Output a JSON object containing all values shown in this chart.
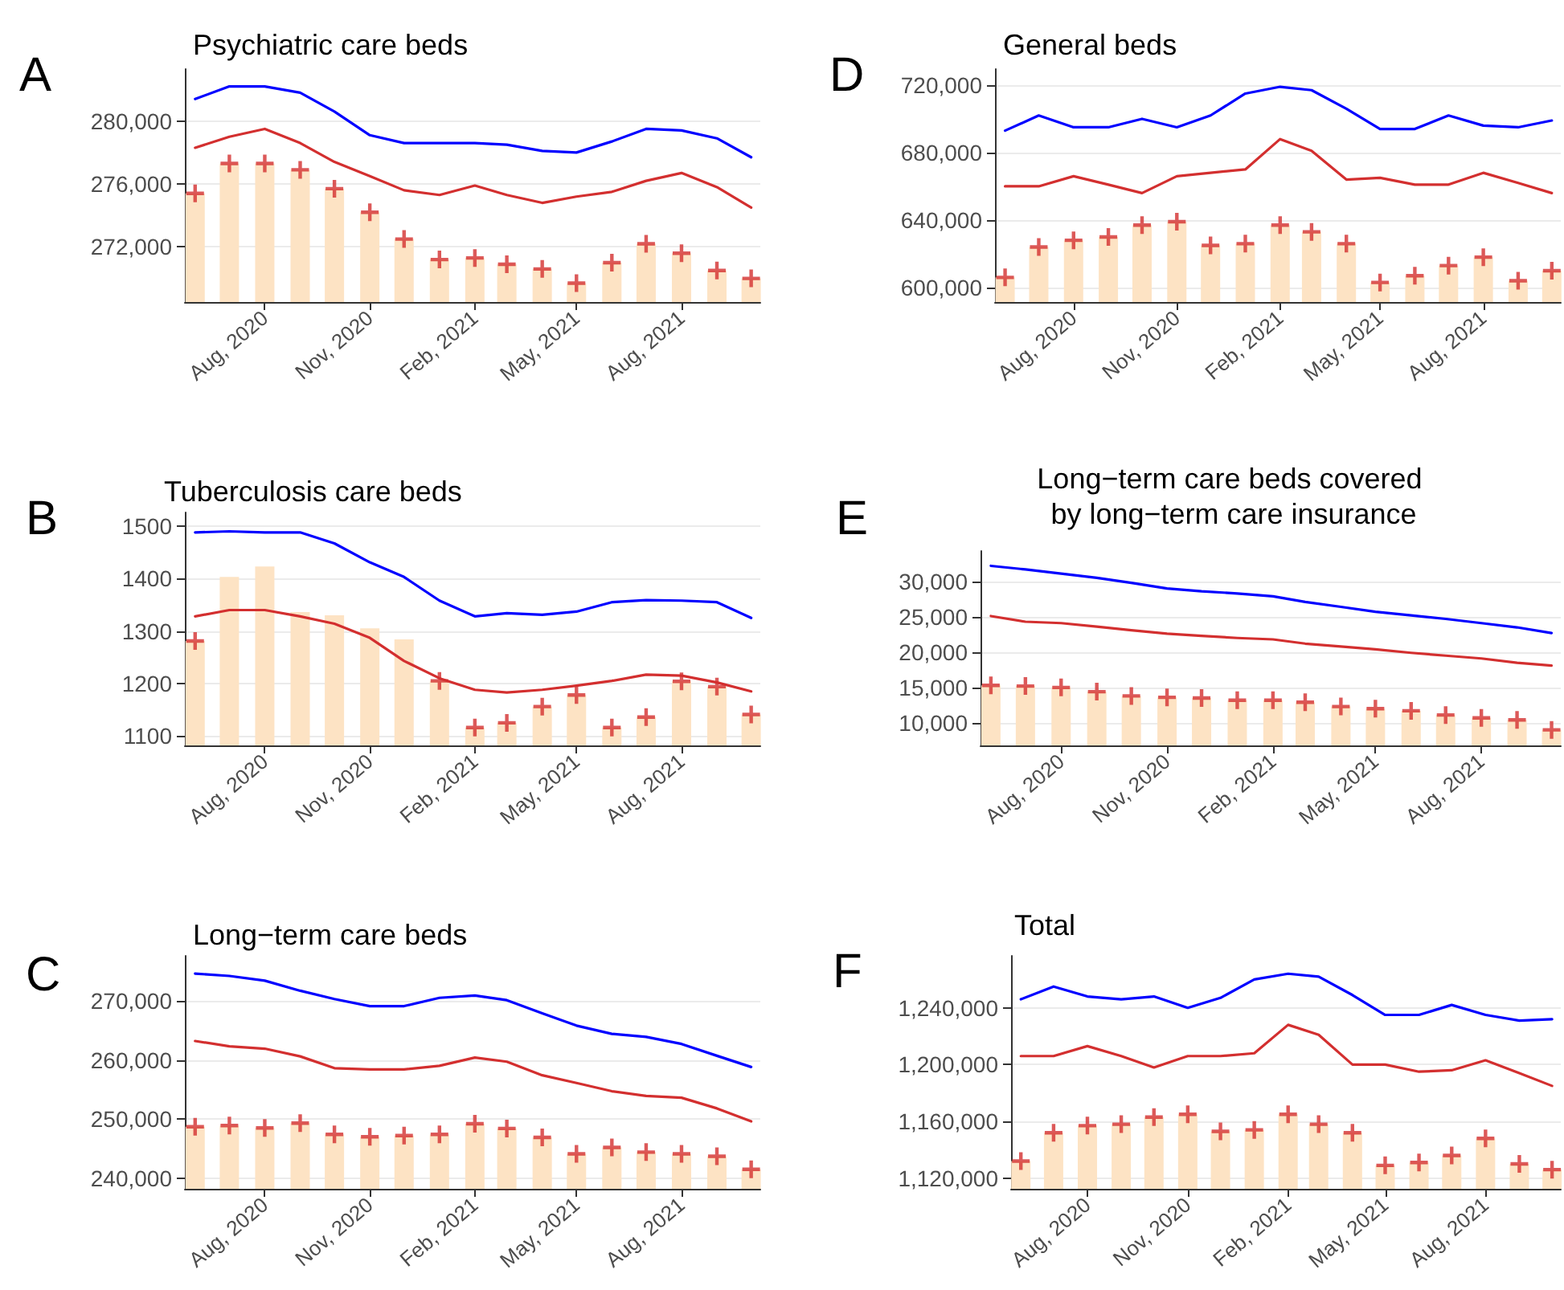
{
  "chart_data": [
    {
      "type": "bar",
      "title": "Psychiatric care beds",
      "annotations": [
        "A"
      ],
      "x": [
        "2020-06",
        "2020-07",
        "2020-08",
        "2020-09",
        "2020-10",
        "2020-11",
        "2020-12",
        "2021-01",
        "2021-02",
        "2021-03",
        "2021-04",
        "2021-05",
        "2021-06",
        "2021-07",
        "2021-08",
        "2021-09",
        "2021-10"
      ],
      "xlim": [
        "2020-05-23",
        "2021-10-09"
      ],
      "xticks": [
        {
          "value": "2020-08",
          "label": "Aug, 2020"
        },
        {
          "value": "2020-11",
          "label": "Nov, 2020"
        },
        {
          "value": "2021-02",
          "label": "Feb, 2021"
        },
        {
          "value": "2021-05",
          "label": "May, 2021"
        },
        {
          "value": "2021-08",
          "label": "Aug, 2021"
        }
      ],
      "ylim": [
        268500,
        283300
      ],
      "yticks": [
        {
          "value": 272000,
          "label": "272,000"
        },
        {
          "value": 276000,
          "label": "276,000"
        },
        {
          "value": 280000,
          "label": "280,000"
        }
      ],
      "grid": "y",
      "series": [
        {
          "color": "#fde3c4",
          "values": [
            275400,
            277300,
            277300,
            276900,
            275700,
            274200,
            272500,
            271200,
            271300,
            270900,
            270600,
            269700,
            271000,
            272200,
            271600,
            270500,
            270000
          ]
        },
        {
          "type": "line",
          "color": "#0000ff",
          "line_style": "solid",
          "values": [
            281400,
            282200,
            282200,
            281800,
            280600,
            279100,
            278600,
            278600,
            278600,
            278500,
            278100,
            278000,
            278700,
            279500,
            279400,
            278900,
            277700
          ]
        },
        {
          "type": "line",
          "color": "#d32f2f",
          "line_style": "solid",
          "values": [
            278300,
            279000,
            279500,
            278600,
            277400,
            276500,
            275600,
            275300,
            275900,
            275300,
            274800,
            275200,
            275500,
            276200,
            276700,
            275800,
            274500
          ]
        },
        {
          "type": "scatter",
          "color": "#d32f2f",
          "marker": "cross",
          "values": [
            275400,
            277300,
            277300,
            276900,
            275700,
            274200,
            272500,
            271200,
            271300,
            270900,
            270600,
            269700,
            271000,
            272200,
            271600,
            270500,
            270000
          ]
        }
      ]
    },
    {
      "type": "bar",
      "title": "General beds",
      "annotations": [
        "D"
      ],
      "x": [
        "2020-06",
        "2020-07",
        "2020-08",
        "2020-09",
        "2020-10",
        "2020-11",
        "2020-12",
        "2021-01",
        "2021-02",
        "2021-03",
        "2021-04",
        "2021-05",
        "2021-06",
        "2021-07",
        "2021-08",
        "2021-09",
        "2021-10"
      ],
      "xlim": [
        "2020-05-23",
        "2021-10-09"
      ],
      "xticks": [
        {
          "value": "2020-08",
          "label": "Aug, 2020"
        },
        {
          "value": "2020-11",
          "label": "Nov, 2020"
        },
        {
          "value": "2021-02",
          "label": "Feb, 2021"
        },
        {
          "value": "2021-05",
          "label": "May, 2021"
        },
        {
          "value": "2021-08",
          "label": "Aug, 2021"
        }
      ],
      "ylim": [
        591400,
        729500
      ],
      "yticks": [
        {
          "value": 600000,
          "label": "600,000"
        },
        {
          "value": 640000,
          "label": "640,000"
        },
        {
          "value": 680000,
          "label": "680,000"
        },
        {
          "value": 720000,
          "label": "720,000"
        }
      ],
      "grid": "y",
      "series": [
        {
          "color": "#fde3c4",
          "values": [
            606000,
            624000,
            628000,
            630000,
            637000,
            639000,
            625000,
            626000,
            637000,
            633000,
            626000,
            603000,
            607000,
            613000,
            618000,
            604000,
            610000
          ]
        },
        {
          "type": "line",
          "color": "#0000ff",
          "line_style": "solid",
          "values": [
            693000,
            702000,
            695000,
            695000,
            700000,
            695000,
            702000,
            715000,
            719000,
            717000,
            706000,
            694000,
            694000,
            702000,
            696000,
            695000,
            699000
          ]
        },
        {
          "type": "line",
          "color": "#d32f2f",
          "line_style": "solid",
          "values": [
            660000,
            660000,
            666000,
            661000,
            656000,
            666000,
            668000,
            670000,
            688000,
            681000,
            664000,
            665000,
            661000,
            661000,
            668000,
            662000,
            656000
          ]
        },
        {
          "type": "scatter",
          "color": "#d32f2f",
          "marker": "cross",
          "values": [
            606000,
            624000,
            628000,
            630000,
            637000,
            639000,
            625000,
            626000,
            637000,
            633000,
            626000,
            603000,
            607000,
            613000,
            618000,
            604000,
            610000
          ]
        }
      ]
    },
    {
      "type": "bar",
      "title": "Tuberculosis care beds",
      "annotations": [
        "B"
      ],
      "x": [
        "2020-06",
        "2020-07",
        "2020-08",
        "2020-09",
        "2020-10",
        "2020-11",
        "2020-12",
        "2021-01",
        "2021-02",
        "2021-03",
        "2021-04",
        "2021-05",
        "2021-06",
        "2021-07",
        "2021-08",
        "2021-09",
        "2021-10"
      ],
      "xlim": [
        "2020-05-23",
        "2021-10-09"
      ],
      "xticks": [
        {
          "value": "2020-08",
          "label": "Aug, 2020"
        },
        {
          "value": "2020-11",
          "label": "Nov, 2020"
        },
        {
          "value": "2021-02",
          "label": "Feb, 2021"
        },
        {
          "value": "2021-05",
          "label": "May, 2021"
        },
        {
          "value": "2021-08",
          "label": "Aug, 2021"
        }
      ],
      "ylim": [
        1082,
        1526
      ],
      "yticks": [
        1100,
        1200,
        1300,
        1400,
        1500
      ],
      "grid": "y",
      "series": [
        {
          "color": "#fde3c4",
          "values": [
            1281,
            1403,
            1423,
            1336,
            1330,
            1305,
            1284,
            1205,
            1116,
            1125,
            1156,
            1178,
            1116,
            1136,
            1204,
            1194,
            1141
          ]
        },
        {
          "type": "line",
          "color": "#0000ff",
          "line_style": "solid",
          "values": [
            1488,
            1490,
            1488,
            1488,
            1467,
            1431,
            1403,
            1358,
            1328,
            1334,
            1331,
            1337,
            1355,
            1359,
            1358,
            1355,
            1325
          ]
        },
        {
          "type": "line",
          "color": "#d32f2f",
          "line_style": "solid",
          "values": [
            1328,
            1340,
            1340,
            1328,
            1314,
            1287,
            1243,
            1210,
            1188,
            1183,
            1188,
            1196,
            1205,
            1217,
            1215,
            1202,
            1185
          ]
        },
        {
          "type": "scatter",
          "color": "#d32f2f",
          "marker": "cross",
          "values": [
            1281,
            null,
            null,
            null,
            null,
            null,
            null,
            1205,
            1116,
            1125,
            1156,
            1178,
            1116,
            1136,
            1204,
            1194,
            1141
          ]
        }
      ]
    },
    {
      "type": "bar",
      "title": "Long−term care beds covered\n by long−term care insurance",
      "annotations": [
        "E"
      ],
      "x": [
        "2020-06",
        "2020-07",
        "2020-08",
        "2020-09",
        "2020-10",
        "2020-11",
        "2020-12",
        "2021-01",
        "2021-02",
        "2021-03",
        "2021-04",
        "2021-05",
        "2021-06",
        "2021-07",
        "2021-08",
        "2021-09",
        "2021-10"
      ],
      "xlim": [
        "2020-05-23",
        "2021-10-09"
      ],
      "xticks": [
        {
          "value": "2020-08",
          "label": "Aug, 2020"
        },
        {
          "value": "2020-11",
          "label": "Nov, 2020"
        },
        {
          "value": "2021-02",
          "label": "Feb, 2021"
        },
        {
          "value": "2021-05",
          "label": "May, 2021"
        },
        {
          "value": "2021-08",
          "label": "Aug, 2021"
        }
      ],
      "ylim": [
        6800,
        34300
      ],
      "yticks": [
        {
          "value": 10000,
          "label": "10,000"
        },
        {
          "value": 15000,
          "label": "15,000"
        },
        {
          "value": 20000,
          "label": "20,000"
        },
        {
          "value": 25000,
          "label": "25,000"
        },
        {
          "value": 30000,
          "label": "30,000"
        }
      ],
      "grid": "y",
      "series": [
        {
          "color": "#fde3c4",
          "values": [
            15300,
            15200,
            15000,
            14400,
            13800,
            13600,
            13500,
            13200,
            13200,
            12900,
            12300,
            12000,
            11700,
            11100,
            10700,
            10400,
            9000
          ]
        },
        {
          "type": "line",
          "color": "#0000ff",
          "line_style": "solid",
          "values": [
            32200,
            31700,
            31100,
            30500,
            29800,
            29000,
            28600,
            28300,
            27900,
            27100,
            26400,
            25700,
            25200,
            24700,
            24100,
            23500,
            22700
          ]
        },
        {
          "type": "line",
          "color": "#d32f2f",
          "line_style": "solid",
          "values": [
            25100,
            24300,
            24100,
            23600,
            23100,
            22600,
            22300,
            22000,
            21800,
            21200,
            20800,
            20400,
            19900,
            19500,
            19100,
            18500,
            18100
          ]
        },
        {
          "type": "scatter",
          "color": "#d32f2f",
          "marker": "cross",
          "values": [
            15300,
            15200,
            15000,
            14400,
            13800,
            13600,
            13500,
            13200,
            13200,
            12900,
            12300,
            12000,
            11700,
            11100,
            10700,
            10400,
            9000
          ]
        }
      ]
    },
    {
      "type": "bar",
      "title": "Long−term care beds",
      "annotations": [
        "C"
      ],
      "x": [
        "2020-06",
        "2020-07",
        "2020-08",
        "2020-09",
        "2020-10",
        "2020-11",
        "2020-12",
        "2021-01",
        "2021-02",
        "2021-03",
        "2021-04",
        "2021-05",
        "2021-06",
        "2021-07",
        "2021-08",
        "2021-09",
        "2021-10"
      ],
      "xlim": [
        "2020-05-23",
        "2021-10-09"
      ],
      "xticks": [
        {
          "value": "2020-08",
          "label": "Aug, 2020"
        },
        {
          "value": "2020-11",
          "label": "Nov, 2020"
        },
        {
          "value": "2021-02",
          "label": "Feb, 2021"
        },
        {
          "value": "2021-05",
          "label": "May, 2021"
        },
        {
          "value": "2021-08",
          "label": "Aug, 2021"
        }
      ],
      "ylim": [
        238200,
        277600
      ],
      "yticks": [
        {
          "value": 240000,
          "label": "240,000"
        },
        {
          "value": 250000,
          "label": "250,000"
        },
        {
          "value": 260000,
          "label": "260,000"
        },
        {
          "value": 270000,
          "label": "270,000"
        }
      ],
      "grid": "y",
      "series": [
        {
          "color": "#fde3c4",
          "values": [
            248700,
            248900,
            248500,
            249300,
            247400,
            247000,
            247200,
            247400,
            249200,
            248400,
            246900,
            244100,
            245200,
            244400,
            244100,
            243700,
            241500
          ]
        },
        {
          "type": "line",
          "color": "#0000ff",
          "line_style": "solid",
          "values": [
            274600,
            274200,
            273400,
            271700,
            270300,
            269100,
            269100,
            270500,
            270900,
            270100,
            267900,
            265800,
            264400,
            263900,
            262700,
            260700,
            258800
          ]
        },
        {
          "type": "line",
          "color": "#d32f2f",
          "line_style": "solid",
          "values": [
            263200,
            262300,
            261900,
            260600,
            258600,
            258400,
            258400,
            259000,
            260400,
            259700,
            257400,
            256100,
            254700,
            253900,
            253600,
            251800,
            249600
          ]
        },
        {
          "type": "scatter",
          "color": "#d32f2f",
          "marker": "cross",
          "values": [
            248700,
            248900,
            248500,
            249300,
            247400,
            247000,
            247200,
            247400,
            249200,
            248400,
            246900,
            244100,
            245200,
            244400,
            244100,
            243700,
            241500
          ]
        }
      ]
    },
    {
      "type": "bar",
      "title": "Total",
      "annotations": [
        "F"
      ],
      "x": [
        "2020-06",
        "2020-07",
        "2020-08",
        "2020-09",
        "2020-10",
        "2020-11",
        "2020-12",
        "2021-01",
        "2021-02",
        "2021-03",
        "2021-04",
        "2021-05",
        "2021-06",
        "2021-07",
        "2021-08",
        "2021-09",
        "2021-10"
      ],
      "xlim": [
        "2020-05-23",
        "2021-10-09"
      ],
      "xticks": [
        {
          "value": "2020-08",
          "label": "Aug, 2020"
        },
        {
          "value": "2020-11",
          "label": "Nov, 2020"
        },
        {
          "value": "2021-02",
          "label": "Feb, 2021"
        },
        {
          "value": "2021-05",
          "label": "May, 2021"
        },
        {
          "value": "2021-08",
          "label": "Aug, 2021"
        }
      ],
      "ylim": [
        1112500,
        1276600
      ],
      "yticks": [
        {
          "value": 1120000,
          "label": "1,120,000"
        },
        {
          "value": 1160000,
          "label": "1,160,000"
        },
        {
          "value": 1200000,
          "label": "1,200,000"
        },
        {
          "value": 1240000,
          "label": "1,240,000"
        }
      ],
      "grid": "y",
      "series": [
        {
          "color": "#fde3c4",
          "values": [
            1132000,
            1152000,
            1157000,
            1158000,
            1163000,
            1165000,
            1153000,
            1154000,
            1165000,
            1158000,
            1152000,
            1129000,
            1131000,
            1136000,
            1148000,
            1130000,
            1126000
          ]
        },
        {
          "type": "line",
          "color": "#0000ff",
          "line_style": "solid",
          "values": [
            1246000,
            1255000,
            1248000,
            1246000,
            1248000,
            1240000,
            1247000,
            1260000,
            1264000,
            1262000,
            1249000,
            1235000,
            1235000,
            1242000,
            1235000,
            1231000,
            1232000
          ]
        },
        {
          "type": "line",
          "color": "#d32f2f",
          "line_style": "solid",
          "values": [
            1206000,
            1206000,
            1213000,
            1206000,
            1198000,
            1206000,
            1206000,
            1208000,
            1228000,
            1221000,
            1200000,
            1200000,
            1195000,
            1196000,
            1203000,
            1194000,
            1185000
          ]
        },
        {
          "type": "scatter",
          "color": "#d32f2f",
          "marker": "cross",
          "values": [
            1132000,
            1152000,
            1157000,
            1158000,
            1163000,
            1165000,
            1153000,
            1154000,
            1165000,
            1158000,
            1152000,
            1129000,
            1131000,
            1136000,
            1148000,
            1130000,
            1126000
          ]
        }
      ]
    }
  ]
}
